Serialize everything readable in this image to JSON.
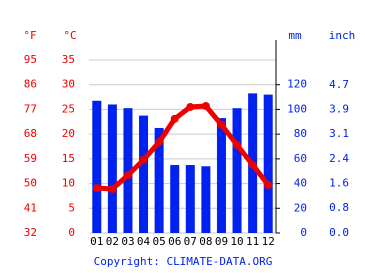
{
  "chart_data": {
    "type": "climate",
    "categories": [
      "01",
      "02",
      "03",
      "04",
      "05",
      "06",
      "07",
      "08",
      "09",
      "10",
      "11",
      "12"
    ],
    "series": [
      {
        "type": "bar",
        "axis": "y2",
        "color": "#0022ee",
        "values": [
          107,
          104,
          101,
          95,
          85,
          55,
          55,
          54,
          93,
          101,
          113,
          112
        ]
      },
      {
        "type": "line",
        "color": "#ee0000",
        "values": [
          9.1,
          8.9,
          11.7,
          14.8,
          18.4,
          23.1,
          25.5,
          25.7,
          21.9,
          17.8,
          13.8,
          9.7
        ]
      }
    ],
    "ylabel": "°C",
    "ylim": [
      0,
      35
    ],
    "yticks": [
      0,
      5,
      10,
      15,
      20,
      25,
      30,
      35
    ],
    "fahrenheit": {
      "label": "°F",
      "lim": [
        32,
        95
      ],
      "ticks": [
        32,
        41,
        50,
        59,
        68,
        77,
        86,
        95
      ]
    },
    "y2label": "mm",
    "y2lim": [
      0,
      140
    ],
    "y2ticks": [
      0,
      20,
      40,
      60,
      80,
      100,
      120
    ],
    "inch": {
      "label": "inch",
      "lim": [
        0,
        5.51
      ],
      "ticks": [
        {
          "value": 0,
          "label": "0.0"
        },
        {
          "value": 0.79,
          "label": "0.8"
        },
        {
          "value": 1.57,
          "label": "1.6"
        },
        {
          "value": 2.36,
          "label": "2.4"
        },
        {
          "value": 3.15,
          "label": "3.1"
        },
        {
          "value": 3.94,
          "label": "3.9"
        },
        {
          "value": 4.72,
          "label": "4.7"
        }
      ]
    },
    "grid": true,
    "copyright": "Copyright: CLIMATE-DATA.ORG"
  }
}
